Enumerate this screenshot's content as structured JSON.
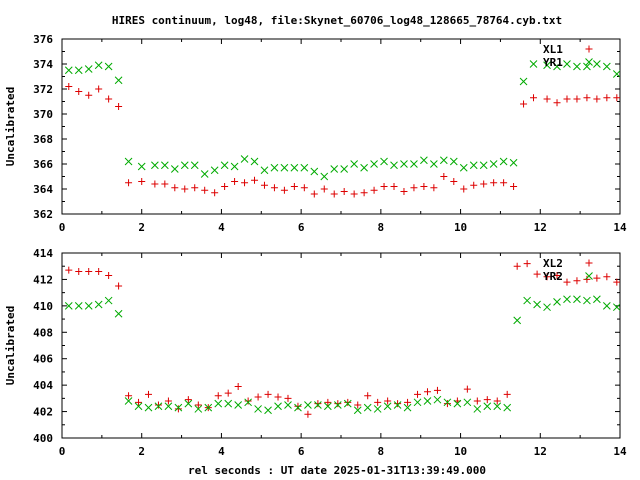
{
  "title": "HIRES continuum, log48, file:Skynet_60706_log48_128665_78764.cyb.txt",
  "xlabel": "rel seconds : UT date 2025-01-31T13:39:49.000",
  "chart_data": [
    {
      "type": "scatter",
      "ylabel": "Uncalibrated",
      "xlim": [
        0,
        14
      ],
      "ylim": [
        362,
        376
      ],
      "xticks": [
        "0",
        "2",
        "4",
        "6",
        "8",
        "10",
        "12",
        "14"
      ],
      "yticks": [
        "362",
        "364",
        "366",
        "368",
        "370",
        "372",
        "374",
        "376"
      ],
      "legend_position": "top-right",
      "series": [
        {
          "name": "XL1",
          "color": "#dd0000",
          "marker": "plus",
          "x": [
            0.17,
            0.42,
            0.67,
            0.92,
            1.17,
            1.42,
            1.67,
            2.0,
            2.33,
            2.58,
            2.83,
            3.08,
            3.33,
            3.58,
            3.83,
            4.08,
            4.33,
            4.58,
            4.83,
            5.08,
            5.33,
            5.58,
            5.83,
            6.08,
            6.33,
            6.58,
            6.83,
            7.08,
            7.33,
            7.58,
            7.83,
            8.08,
            8.33,
            8.58,
            8.83,
            9.08,
            9.33,
            9.58,
            9.83,
            10.08,
            10.33,
            10.58,
            10.83,
            11.08,
            11.33,
            11.58,
            11.83,
            12.17,
            12.42,
            12.67,
            12.92,
            13.17,
            13.42,
            13.67,
            13.92
          ],
          "y": [
            372.2,
            371.8,
            371.5,
            372.0,
            371.2,
            370.6,
            364.5,
            364.6,
            364.4,
            364.4,
            364.1,
            364.0,
            364.1,
            363.9,
            363.7,
            364.2,
            364.6,
            364.5,
            364.7,
            364.3,
            364.1,
            363.9,
            364.2,
            364.1,
            363.6,
            364.0,
            363.6,
            363.8,
            363.6,
            363.7,
            363.9,
            364.2,
            364.2,
            363.8,
            364.1,
            364.2,
            364.1,
            365.0,
            364.6,
            364.0,
            364.3,
            364.4,
            364.5,
            364.5,
            364.2,
            370.8,
            371.3,
            371.2,
            370.9,
            371.2,
            371.2,
            371.3,
            371.2,
            371.3,
            371.3
          ],
          "note": ""
        },
        {
          "name": "YR1",
          "color": "#00aa00",
          "marker": "cross",
          "x": [
            0.17,
            0.42,
            0.67,
            0.92,
            1.17,
            1.42,
            1.67,
            2.0,
            2.33,
            2.58,
            2.83,
            3.08,
            3.33,
            3.58,
            3.83,
            4.08,
            4.33,
            4.58,
            4.83,
            5.08,
            5.33,
            5.58,
            5.83,
            6.08,
            6.33,
            6.58,
            6.83,
            7.08,
            7.33,
            7.58,
            7.83,
            8.08,
            8.33,
            8.58,
            8.83,
            9.08,
            9.33,
            9.58,
            9.83,
            10.08,
            10.33,
            10.58,
            10.83,
            11.08,
            11.33,
            11.58,
            11.83,
            12.17,
            12.42,
            12.67,
            12.92,
            13.17,
            13.42,
            13.67,
            13.92
          ],
          "y": [
            373.5,
            373.5,
            373.6,
            373.9,
            373.8,
            372.7,
            366.2,
            365.8,
            365.9,
            365.9,
            365.6,
            365.9,
            365.9,
            365.2,
            365.5,
            365.9,
            365.8,
            366.4,
            366.2,
            365.5,
            365.7,
            365.7,
            365.7,
            365.7,
            365.4,
            365.0,
            365.6,
            365.6,
            366.0,
            365.7,
            366.0,
            366.2,
            365.9,
            366.0,
            366.0,
            366.3,
            366.0,
            366.3,
            366.2,
            365.7,
            365.9,
            365.9,
            366.0,
            366.2,
            366.1,
            372.6,
            374.0,
            373.9,
            373.8,
            374.0,
            373.8,
            373.8,
            374.0,
            373.8,
            373.2
          ],
          "note": ""
        }
      ]
    },
    {
      "type": "scatter",
      "ylabel": "Uncalibrated",
      "xlim": [
        0,
        14
      ],
      "ylim": [
        400,
        414
      ],
      "xticks": [
        "0",
        "2",
        "4",
        "6",
        "8",
        "10",
        "12",
        "14"
      ],
      "yticks": [
        "400",
        "402",
        "404",
        "406",
        "408",
        "410",
        "412",
        "414"
      ],
      "legend_position": "top-right",
      "series": [
        {
          "name": "XL2",
          "color": "#dd0000",
          "marker": "plus",
          "x": [
            0.17,
            0.42,
            0.67,
            0.92,
            1.17,
            1.42,
            1.67,
            1.92,
            2.17,
            2.42,
            2.67,
            2.92,
            3.17,
            3.42,
            3.67,
            3.92,
            4.17,
            4.42,
            4.67,
            4.92,
            5.17,
            5.42,
            5.67,
            5.92,
            6.17,
            6.42,
            6.67,
            6.92,
            7.17,
            7.42,
            7.67,
            7.92,
            8.17,
            8.42,
            8.67,
            8.92,
            9.17,
            9.42,
            9.67,
            9.92,
            10.17,
            10.42,
            10.67,
            10.92,
            11.17,
            11.42,
            11.67,
            11.92,
            12.17,
            12.42,
            12.67,
            12.92,
            13.17,
            13.42,
            13.67,
            13.92
          ],
          "y": [
            412.7,
            412.6,
            412.6,
            412.6,
            412.3,
            411.5,
            403.2,
            402.7,
            403.3,
            402.5,
            402.8,
            402.2,
            402.9,
            402.5,
            402.3,
            403.2,
            403.4,
            403.9,
            402.8,
            403.1,
            403.3,
            403.1,
            403.0,
            402.4,
            401.8,
            402.6,
            402.7,
            402.6,
            402.7,
            402.5,
            403.2,
            402.7,
            402.8,
            402.6,
            402.7,
            403.3,
            403.5,
            403.6,
            402.6,
            402.8,
            403.7,
            402.8,
            402.9,
            402.8,
            403.3,
            413.0,
            413.2,
            412.4,
            412.2,
            412.3,
            411.8,
            411.9,
            412.0,
            412.1,
            412.2,
            411.8
          ],
          "note": ""
        },
        {
          "name": "YR2",
          "color": "#00aa00",
          "marker": "cross",
          "x": [
            0.17,
            0.42,
            0.67,
            0.92,
            1.17,
            1.42,
            1.67,
            1.92,
            2.17,
            2.42,
            2.67,
            2.92,
            3.17,
            3.42,
            3.67,
            3.92,
            4.17,
            4.42,
            4.67,
            4.92,
            5.17,
            5.42,
            5.67,
            5.92,
            6.17,
            6.42,
            6.67,
            6.92,
            7.17,
            7.42,
            7.67,
            7.92,
            8.17,
            8.42,
            8.67,
            8.92,
            9.17,
            9.42,
            9.67,
            9.92,
            10.17,
            10.42,
            10.67,
            10.92,
            11.17,
            11.42,
            11.67,
            11.92,
            12.17,
            12.42,
            12.67,
            12.92,
            13.17,
            13.42,
            13.67,
            13.92
          ],
          "y": [
            410.0,
            410.0,
            410.0,
            410.1,
            410.4,
            409.4,
            402.8,
            402.4,
            402.3,
            402.4,
            402.4,
            402.3,
            402.6,
            402.2,
            402.3,
            402.6,
            402.6,
            402.5,
            402.7,
            402.2,
            402.1,
            402.4,
            402.5,
            402.3,
            402.5,
            402.5,
            402.4,
            402.5,
            402.6,
            402.1,
            402.3,
            402.2,
            402.4,
            402.5,
            402.3,
            402.7,
            402.8,
            402.9,
            402.7,
            402.6,
            402.7,
            402.2,
            402.4,
            402.4,
            402.3,
            408.9,
            410.4,
            410.1,
            409.9,
            410.3,
            410.5,
            410.5,
            410.4,
            410.5,
            410.0,
            409.9
          ],
          "note": ""
        }
      ]
    }
  ]
}
